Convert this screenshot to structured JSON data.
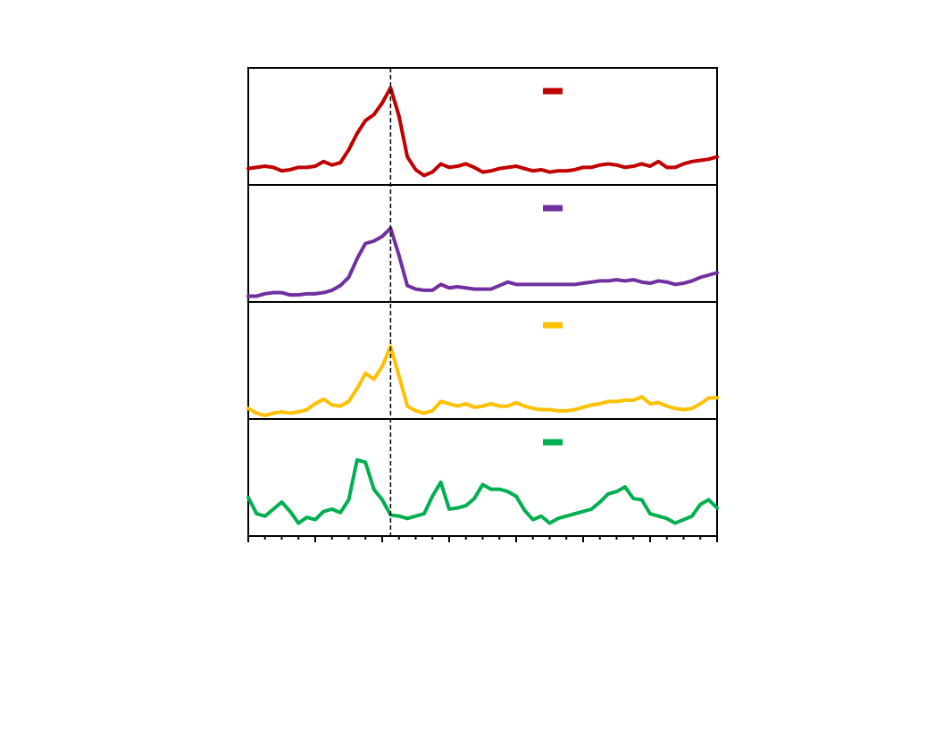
{
  "chart_data": {
    "type": "line",
    "x": [
      0,
      0.5,
      1,
      1.5,
      2,
      2.5,
      3,
      3.5,
      4,
      4.5,
      5,
      5.5,
      6,
      6.5,
      7,
      7.5,
      8,
      8.5,
      9,
      9.5,
      10,
      10.5,
      11,
      11.5,
      12,
      12.5,
      13,
      13.5,
      14,
      14.5,
      15,
      15.5,
      16,
      16.5,
      17,
      17.5,
      18,
      18.5,
      19,
      19.5,
      20,
      20.5,
      21,
      21.5,
      22,
      22.5,
      23,
      23.5,
      24,
      24.5,
      25,
      25.5,
      26,
      26.5,
      27,
      27.5,
      28
    ],
    "xlim": [
      0,
      28
    ],
    "xticks": [
      0,
      1,
      2,
      3,
      4,
      5,
      6,
      7,
      8,
      9,
      10,
      11,
      12,
      13,
      14,
      15,
      16,
      17,
      18,
      19,
      20,
      21,
      22,
      23,
      24,
      25,
      26,
      27,
      28
    ],
    "major_tick_every": 4,
    "ylim": [
      0,
      1
    ],
    "vline": 8.5,
    "legend": "upper right",
    "series": [
      {
        "color": "#c00000",
        "values": [
          0.14,
          0.15,
          0.16,
          0.15,
          0.12,
          0.13,
          0.15,
          0.15,
          0.16,
          0.2,
          0.17,
          0.19,
          0.3,
          0.44,
          0.55,
          0.6,
          0.7,
          0.83,
          0.59,
          0.24,
          0.13,
          0.08,
          0.11,
          0.18,
          0.15,
          0.16,
          0.18,
          0.15,
          0.11,
          0.12,
          0.14,
          0.15,
          0.16,
          0.14,
          0.12,
          0.13,
          0.11,
          0.12,
          0.12,
          0.13,
          0.15,
          0.15,
          0.17,
          0.18,
          0.17,
          0.15,
          0.16,
          0.18,
          0.16,
          0.2,
          0.15,
          0.15,
          0.18,
          0.2,
          0.21,
          0.22,
          0.24
        ]
      },
      {
        "color": "#7030a0",
        "values": [
          0.05,
          0.05,
          0.07,
          0.08,
          0.08,
          0.06,
          0.06,
          0.07,
          0.07,
          0.08,
          0.1,
          0.14,
          0.21,
          0.37,
          0.5,
          0.52,
          0.56,
          0.63,
          0.4,
          0.14,
          0.11,
          0.1,
          0.1,
          0.15,
          0.12,
          0.13,
          0.12,
          0.11,
          0.11,
          0.11,
          0.14,
          0.17,
          0.15,
          0.15,
          0.15,
          0.15,
          0.15,
          0.15,
          0.15,
          0.15,
          0.16,
          0.17,
          0.18,
          0.18,
          0.19,
          0.18,
          0.19,
          0.17,
          0.16,
          0.18,
          0.17,
          0.15,
          0.16,
          0.18,
          0.21,
          0.23,
          0.25
        ]
      },
      {
        "color": "#ffc000",
        "values": [
          0.09,
          0.05,
          0.03,
          0.05,
          0.06,
          0.05,
          0.06,
          0.08,
          0.13,
          0.17,
          0.12,
          0.11,
          0.15,
          0.26,
          0.39,
          0.34,
          0.45,
          0.62,
          0.37,
          0.11,
          0.07,
          0.05,
          0.07,
          0.15,
          0.13,
          0.11,
          0.13,
          0.1,
          0.11,
          0.13,
          0.11,
          0.11,
          0.14,
          0.11,
          0.09,
          0.08,
          0.08,
          0.07,
          0.07,
          0.08,
          0.1,
          0.12,
          0.13,
          0.15,
          0.15,
          0.16,
          0.16,
          0.19,
          0.13,
          0.14,
          0.11,
          0.09,
          0.08,
          0.09,
          0.13,
          0.18,
          0.18
        ]
      },
      {
        "color": "#00b050",
        "values": [
          0.33,
          0.19,
          0.17,
          0.23,
          0.29,
          0.21,
          0.11,
          0.16,
          0.14,
          0.21,
          0.23,
          0.2,
          0.31,
          0.65,
          0.63,
          0.4,
          0.31,
          0.18,
          0.17,
          0.15,
          0.17,
          0.19,
          0.34,
          0.46,
          0.23,
          0.24,
          0.26,
          0.32,
          0.44,
          0.4,
          0.4,
          0.38,
          0.34,
          0.22,
          0.14,
          0.17,
          0.11,
          0.15,
          0.17,
          0.19,
          0.21,
          0.23,
          0.29,
          0.36,
          0.38,
          0.42,
          0.32,
          0.31,
          0.19,
          0.17,
          0.15,
          0.11,
          0.14,
          0.17,
          0.27,
          0.31,
          0.24
        ]
      }
    ]
  }
}
